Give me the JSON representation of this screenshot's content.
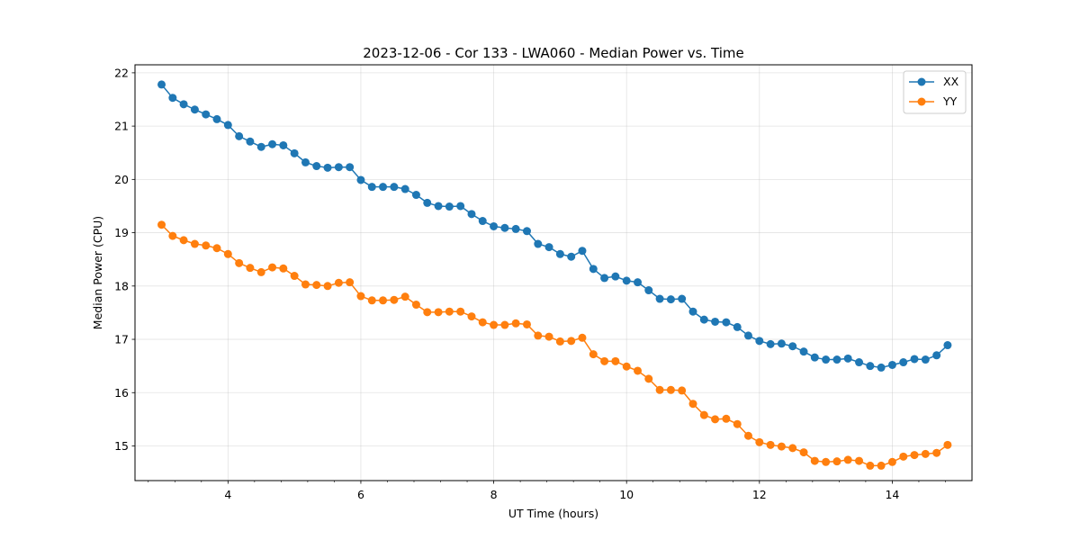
{
  "chart_data": {
    "type": "line",
    "title": "2023-12-06 - Cor 133 - LWA060 - Median Power vs. Time",
    "xlabel": "UT Time (hours)",
    "ylabel": "Median Power (CPU)",
    "xlim": [
      2.6,
      15.2
    ],
    "ylim": [
      14.35,
      22.15
    ],
    "xticks": [
      4,
      6,
      8,
      10,
      12,
      14
    ],
    "yticks": [
      15,
      16,
      17,
      18,
      19,
      20,
      21,
      22
    ],
    "grid": true,
    "legend_position": "top-right",
    "x": [
      3.0,
      3.167,
      3.333,
      3.5,
      3.667,
      3.833,
      4.0,
      4.167,
      4.333,
      4.5,
      4.667,
      4.833,
      5.0,
      5.167,
      5.333,
      5.5,
      5.667,
      5.833,
      6.0,
      6.167,
      6.333,
      6.5,
      6.667,
      6.833,
      7.0,
      7.167,
      7.333,
      7.5,
      7.667,
      7.833,
      8.0,
      8.167,
      8.333,
      8.5,
      8.667,
      8.833,
      9.0,
      9.167,
      9.333,
      9.5,
      9.667,
      9.833,
      10.0,
      10.167,
      10.333,
      10.5,
      10.667,
      10.833,
      11.0,
      11.167,
      11.333,
      11.5,
      11.667,
      11.833,
      12.0,
      12.167,
      12.333,
      12.5,
      12.667,
      12.833,
      13.0,
      13.167,
      13.333,
      13.5,
      13.667,
      13.833,
      14.0,
      14.167,
      14.333,
      14.5,
      14.667,
      14.833
    ],
    "series": [
      {
        "name": "XX",
        "color": "#1f77b4",
        "values": [
          21.78,
          21.53,
          21.41,
          21.31,
          21.22,
          21.13,
          21.02,
          20.81,
          20.71,
          20.61,
          20.66,
          20.64,
          20.49,
          20.32,
          20.25,
          20.22,
          20.23,
          20.23,
          19.99,
          19.86,
          19.86,
          19.86,
          19.82,
          19.71,
          19.56,
          19.5,
          19.49,
          19.5,
          19.35,
          19.22,
          19.12,
          19.09,
          19.07,
          19.03,
          18.79,
          18.73,
          18.6,
          18.55,
          18.66,
          18.32,
          18.15,
          18.18,
          18.1,
          18.07,
          17.92,
          17.76,
          17.75,
          17.76,
          17.52,
          17.37,
          17.33,
          17.32,
          17.23,
          17.07,
          16.97,
          16.91,
          16.92,
          16.87,
          16.77,
          16.66,
          16.62,
          16.62,
          16.64,
          16.57,
          16.5,
          16.47,
          16.52,
          16.57,
          16.63,
          16.62,
          16.7,
          16.89
        ]
      },
      {
        "name": "YY",
        "color": "#ff7f0e",
        "values": [
          19.15,
          18.94,
          18.86,
          18.79,
          18.76,
          18.71,
          18.6,
          18.43,
          18.34,
          18.26,
          18.35,
          18.33,
          18.19,
          18.03,
          18.02,
          18.0,
          18.06,
          18.07,
          17.81,
          17.73,
          17.73,
          17.74,
          17.8,
          17.65,
          17.51,
          17.51,
          17.52,
          17.52,
          17.43,
          17.32,
          17.27,
          17.27,
          17.3,
          17.28,
          17.07,
          17.05,
          16.96,
          16.97,
          17.03,
          16.72,
          16.59,
          16.59,
          16.49,
          16.41,
          16.26,
          16.05,
          16.05,
          16.04,
          15.79,
          15.58,
          15.5,
          15.51,
          15.41,
          15.19,
          15.07,
          15.02,
          14.99,
          14.96,
          14.88,
          14.72,
          14.7,
          14.71,
          14.74,
          14.72,
          14.63,
          14.63,
          14.7,
          14.8,
          14.83,
          14.85,
          14.87,
          15.02
        ]
      }
    ]
  }
}
